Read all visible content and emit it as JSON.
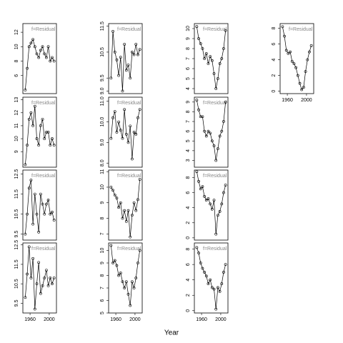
{
  "xlabel": "Year",
  "chart_data": [
    {
      "type": "line",
      "title": "f=Residual",
      "x": [
        1950,
        1954,
        1958,
        1962,
        1966,
        1970,
        1974,
        1978,
        1982,
        1986,
        1990,
        1994,
        1998,
        2002,
        2006,
        2010
      ],
      "values": [
        4,
        7,
        10,
        10.5,
        11,
        10,
        9,
        8.5,
        9.5,
        10,
        9,
        8.5,
        10,
        8,
        8.5,
        8
      ],
      "xlim": [
        1945,
        2015
      ],
      "ylim": [
        3.5,
        13.2
      ],
      "yticks": [
        6,
        8,
        10,
        12
      ]
    },
    {
      "type": "line",
      "title": "f=Residual",
      "x": [
        1950,
        1954,
        1958,
        1962,
        1966,
        1970,
        1974,
        1978,
        1982,
        1986,
        1990,
        1994,
        1998,
        2002,
        2006,
        2010
      ],
      "values": [
        8,
        9.5,
        11.5,
        12,
        11,
        12.5,
        10,
        9.5,
        11,
        11.5,
        10,
        10.5,
        10.5,
        9.5,
        10,
        9.5
      ],
      "xlim": [
        1945,
        2015
      ],
      "ylim": [
        7.8,
        13.2
      ],
      "yticks": [
        9,
        10,
        11,
        12,
        13
      ]
    },
    {
      "type": "line",
      "title": "f=Residual",
      "x": [
        1950,
        1954,
        1958,
        1962,
        1966,
        1970,
        1974,
        1978,
        1982,
        1986,
        1990,
        1994,
        1998,
        2002,
        2006,
        2010
      ],
      "values": [
        9.5,
        10.5,
        11.8,
        12.2,
        10,
        11.5,
        10.5,
        9.6,
        11.5,
        11,
        10.5,
        11,
        11.2,
        10.5,
        10.6,
        10.2
      ],
      "xlim": [
        1945,
        2015
      ],
      "ylim": [
        9.2,
        12.7
      ],
      "yticks": [
        9.5,
        10.5,
        11.5,
        12.5
      ]
    },
    {
      "type": "line",
      "title": "f=Residual",
      "x": [
        1950,
        1954,
        1958,
        1962,
        1966,
        1970,
        1974,
        1978,
        1982,
        1986,
        1990,
        1994,
        1998,
        2002,
        2006,
        2010
      ],
      "values": [
        9.8,
        11,
        12.4,
        10.8,
        11.8,
        9.2,
        10.5,
        11.6,
        10,
        10.4,
        10.8,
        11.2,
        10.4,
        10.8,
        10.5,
        10.8
      ],
      "xlim": [
        1945,
        2015
      ],
      "ylim": [
        9.0,
        12.6
      ],
      "yticks": [
        9.5,
        10.5,
        11.5,
        12.5
      ],
      "xticks": [
        1960,
        2000
      ]
    },
    {
      "type": "line",
      "title": "f=Residual",
      "x": [
        1950,
        1954,
        1958,
        1962,
        1966,
        1970,
        1974,
        1978,
        1982,
        1986,
        1990,
        1994,
        1998,
        2002,
        2006,
        2010
      ],
      "values": [
        9.5,
        11.3,
        10.5,
        10.2,
        9.6,
        10.3,
        9,
        10.8,
        9.8,
        10,
        9.5,
        10.5,
        10.4,
        10.8,
        10.4,
        10.6
      ],
      "xlim": [
        1945,
        2015
      ],
      "ylim": [
        8.9,
        11.6
      ],
      "yticks": [
        {
          "value": 9,
          "label": "9.0"
        },
        9.5,
        10.5,
        11.5
      ]
    },
    {
      "type": "line",
      "title": "f=Residual",
      "x": [
        1950,
        1954,
        1958,
        1962,
        1966,
        1970,
        1974,
        1978,
        1982,
        1986,
        1990,
        1994,
        1998,
        2002,
        2006,
        2010
      ],
      "values": [
        9.2,
        10.2,
        10.5,
        9.5,
        10,
        9.6,
        9.2,
        10.6,
        9.4,
        9,
        9.8,
        8.2,
        9.5,
        9.4,
        10.2,
        10.6
      ],
      "xlim": [
        1945,
        2015
      ],
      "ylim": [
        7.8,
        11.2
      ],
      "yticks": [
        {
          "value": 8,
          "label": "8.0"
        },
        {
          "value": 9,
          "label": "9.0"
        },
        {
          "value": 10,
          "label": "10.0"
        },
        {
          "value": 11,
          "label": "11.0"
        }
      ]
    },
    {
      "type": "line",
      "title": "f=Residual",
      "x": [
        1950,
        1954,
        1958,
        1962,
        1966,
        1970,
        1974,
        1978,
        1982,
        1986,
        1990,
        1994,
        1998,
        2002,
        2006,
        2010
      ],
      "values": [
        10,
        9.8,
        9.5,
        9.3,
        8.7,
        9,
        8,
        8.5,
        7.8,
        8.5,
        6.8,
        8.2,
        9,
        8.5,
        9.2,
        10.5
      ],
      "xlim": [
        1945,
        2015
      ],
      "ylim": [
        6.6,
        11.1
      ],
      "yticks": [
        7,
        8,
        9,
        10,
        11
      ]
    },
    {
      "type": "line",
      "title": "f=Residual",
      "x": [
        1950,
        1954,
        1958,
        1962,
        1966,
        1970,
        1974,
        1978,
        1982,
        1986,
        1990,
        1994,
        1998,
        2002,
        2006,
        2010
      ],
      "values": [
        10.4,
        9,
        9.2,
        8.8,
        8,
        8.2,
        7.5,
        7,
        7.5,
        6.5,
        5.6,
        7.5,
        7,
        7.8,
        9,
        10
      ],
      "xlim": [
        1945,
        2015
      ],
      "ylim": [
        5,
        10.6
      ],
      "yticks": [
        5,
        6,
        7,
        8,
        9,
        10
      ],
      "xticks": [
        1960,
        2000
      ]
    },
    {
      "type": "line",
      "title": "f=Residual",
      "x": [
        1950,
        1954,
        1958,
        1962,
        1966,
        1970,
        1974,
        1978,
        1982,
        1986,
        1990,
        1994,
        1998,
        2002,
        2006,
        2010
      ],
      "values": [
        10.2,
        9,
        8.5,
        8,
        7,
        7.5,
        6.5,
        7.2,
        6.8,
        5.5,
        4,
        5,
        6.5,
        7,
        8,
        9.8
      ],
      "xlim": [
        1945,
        2015
      ],
      "ylim": [
        3.5,
        10.5
      ],
      "yticks": [
        4,
        5,
        6,
        7,
        8,
        9,
        10
      ]
    },
    {
      "type": "line",
      "title": "f=Residual",
      "x": [
        1950,
        1954,
        1958,
        1962,
        1966,
        1970,
        1974,
        1978,
        1982,
        1986,
        1990,
        1994,
        1998,
        2002,
        2006,
        2010
      ],
      "values": [
        9.2,
        8.2,
        7.5,
        7.5,
        6,
        5.5,
        6,
        5.8,
        5,
        4.5,
        3,
        4.2,
        5.5,
        6,
        7,
        9
      ],
      "xlim": [
        1945,
        2015
      ],
      "ylim": [
        2.3,
        9.5
      ],
      "yticks": [
        3,
        4,
        5,
        6,
        7,
        8,
        9
      ]
    },
    {
      "type": "line",
      "title": "f=Residual",
      "x": [
        1950,
        1954,
        1958,
        1962,
        1966,
        1970,
        1974,
        1978,
        1982,
        1986,
        1990,
        1994,
        1998,
        2002,
        2006,
        2010
      ],
      "values": [
        8.8,
        7.5,
        6.5,
        6.8,
        5.5,
        5,
        5.2,
        4.5,
        3.8,
        5,
        0.5,
        3,
        3.5,
        4.5,
        6,
        7
      ],
      "xlim": [
        1945,
        2015
      ],
      "ylim": [
        -0.3,
        9
      ],
      "yticks": [
        0,
        2,
        4,
        6,
        8
      ]
    },
    {
      "type": "line",
      "title": "f=Residual",
      "x": [
        1950,
        1954,
        1958,
        1962,
        1966,
        1970,
        1974,
        1978,
        1982,
        1986,
        1990,
        1994,
        1998,
        2002,
        2006,
        2010
      ],
      "values": [
        8.2,
        7.5,
        6.2,
        5.5,
        5,
        4.5,
        3.5,
        4,
        3,
        2.8,
        0.2,
        3,
        2.5,
        3.5,
        5,
        6
      ],
      "xlim": [
        1945,
        2015
      ],
      "ylim": [
        -0.3,
        8.8
      ],
      "yticks": [
        0,
        2,
        4,
        6,
        8
      ],
      "xticks": [
        1960,
        2000
      ]
    },
    {
      "type": "line",
      "title": "f=Residual",
      "x": [
        1950,
        1954,
        1958,
        1962,
        1966,
        1970,
        1974,
        1978,
        1982,
        1986,
        1990,
        1994,
        1998,
        2002,
        2006,
        2010
      ],
      "values": [
        8.2,
        7,
        5.2,
        4.8,
        5,
        3.8,
        3.5,
        3,
        2,
        1,
        0.2,
        0.5,
        2.5,
        4,
        5,
        5.8
      ],
      "xlim": [
        1945,
        2015
      ],
      "ylim": [
        -0.3,
        8.6
      ],
      "yticks": [
        0,
        2,
        4,
        6,
        8
      ],
      "xticks": [
        1960,
        2000
      ]
    }
  ]
}
